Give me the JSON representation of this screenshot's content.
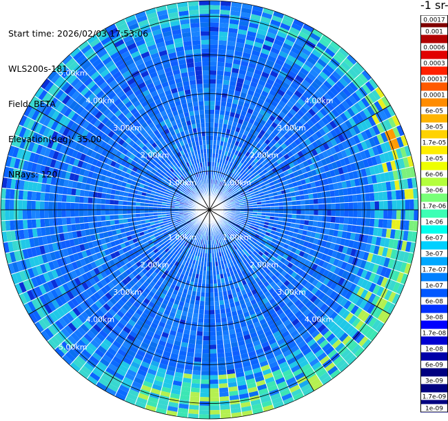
{
  "info": {
    "start_time": "Start time: 2026/02/03 17:53:06",
    "instrument": "WLS200s-181",
    "field": "Field: BETA",
    "elevation": "Elevation(deg): 35.00",
    "nrays": "NRays: 120"
  },
  "colorbar": {
    "title": "-1 sr-",
    "labels": [
      "0.0017",
      "0.001",
      "0.0006",
      "0.0003",
      "0.00017",
      "0.0001",
      "6e-05",
      "3e-05",
      "1.7e-05",
      "1e-05",
      "6e-06",
      "3e-06",
      "1.7e-06",
      "1e-06",
      "6e-07",
      "3e-07",
      "1.7e-07",
      "1e-07",
      "6e-08",
      "3e-08",
      "1.7e-08",
      "1e-08",
      "6e-09",
      "3e-09",
      "1.7e-09",
      "1e-09"
    ],
    "colors": [
      "#7f0000",
      "#b20000",
      "#e10000",
      "#ff2000",
      "#ff5a00",
      "#ff8c00",
      "#ffb400",
      "#ffd200",
      "#ffee00",
      "#eeff00",
      "#b4ff3c",
      "#78ff78",
      "#3cffb4",
      "#00ffee",
      "#00d0ff",
      "#00a8ff",
      "#0080ff",
      "#0058ff",
      "#0030ff",
      "#0000ff",
      "#0000d2",
      "#0000a8",
      "#000080"
    ]
  },
  "chart_data": {
    "type": "heatmap",
    "projection": "polar-ppi",
    "field": "BETA",
    "nrays": 120,
    "max_range_km": 5.4,
    "range_rings_km": [
      1,
      2,
      3,
      4,
      5
    ],
    "ring_labels": [
      "1.00km",
      "2.00km",
      "3.00km",
      "4.00km",
      "5.00km"
    ],
    "colormap": "jet",
    "typical_value": "1e-07 to 1.7e-07",
    "edge_enhancement": {
      "south_to_southeast_beyond_km": 4.3,
      "range": "1.7e-07 to 3e-06",
      "east_max": "3e-05"
    }
  }
}
